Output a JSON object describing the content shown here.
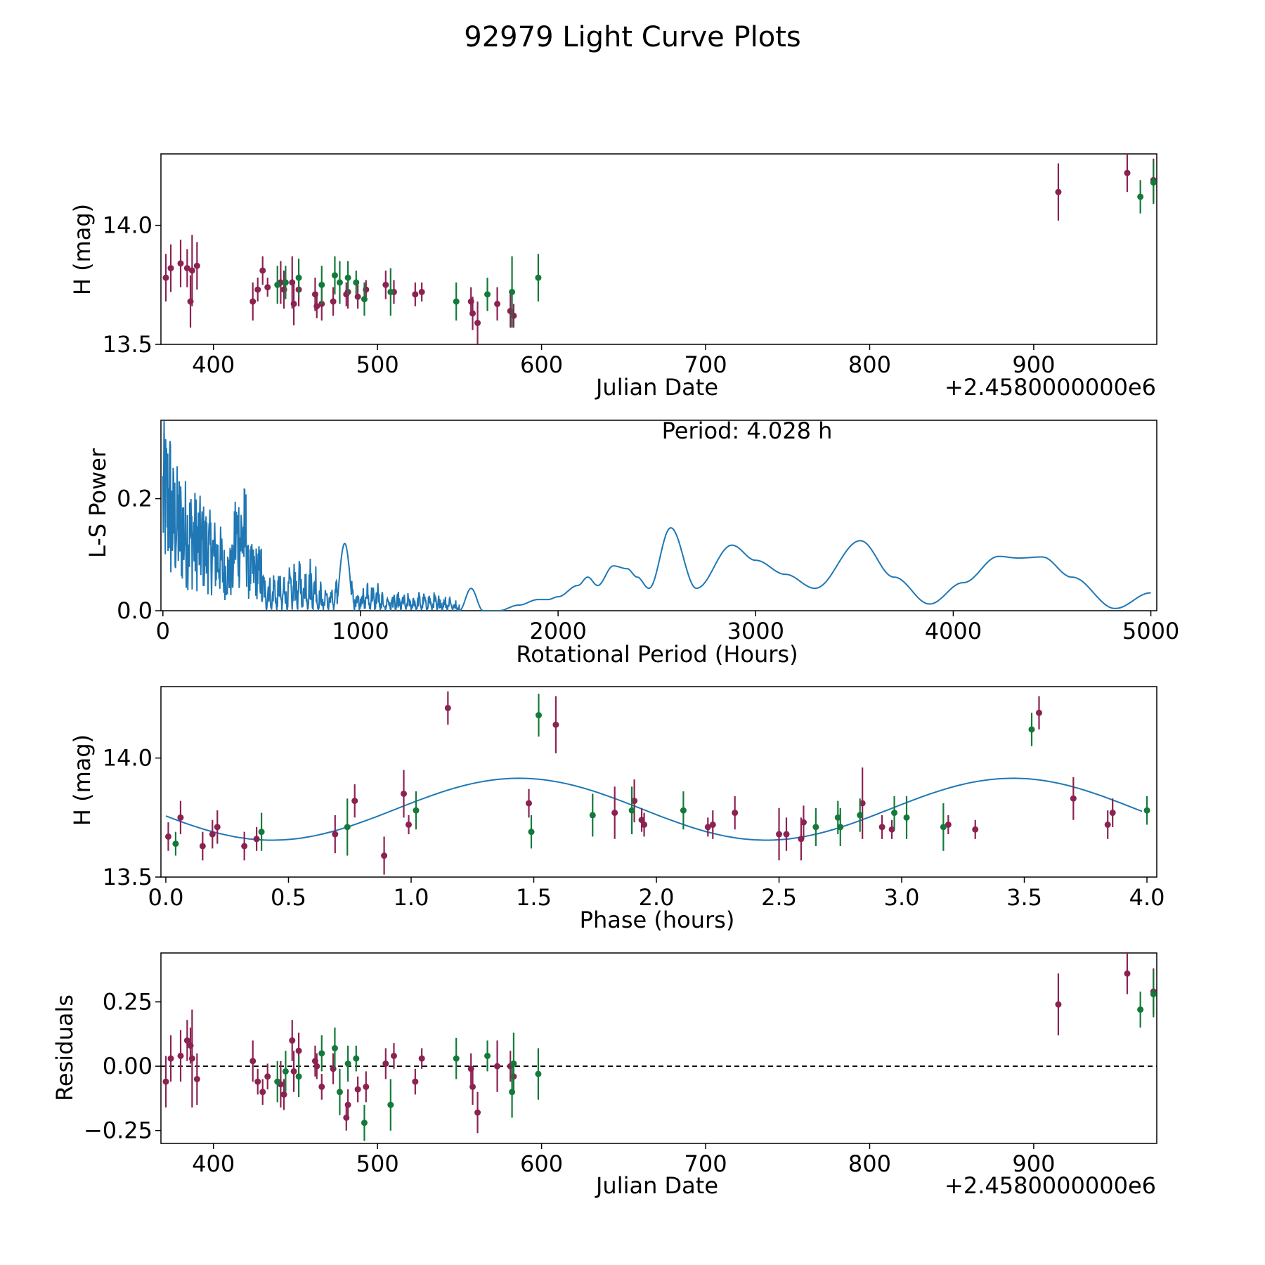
{
  "figure": {
    "title": "92979 Light Curve Plots",
    "background": "#ffffff"
  },
  "colors": {
    "magenta": "#8b2252",
    "green": "#137a3a",
    "curve": "#1f77b4",
    "axis": "#000000"
  },
  "chart_data": [
    {
      "id": "lightcurve",
      "type": "scatter",
      "title": "",
      "xlabel": "Julian Date",
      "ylabel": "H (mag)",
      "offset_label": "+2.4580000000e6",
      "xlim": [
        368,
        975
      ],
      "ylim": [
        13.5,
        14.3
      ],
      "xticks": [
        400,
        500,
        600,
        700,
        800,
        900
      ],
      "yticks": [
        13.5,
        14.0
      ],
      "ytick_labels": [
        "13.5",
        "14.0"
      ],
      "series": [
        {
          "name": "filter-1",
          "color": "magenta",
          "points": [
            [
              371,
              13.78,
              0.1
            ],
            [
              374,
              13.82,
              0.1
            ],
            [
              380,
              13.84,
              0.1
            ],
            [
              384,
              13.82,
              0.08
            ],
            [
              386,
              13.68,
              0.11
            ],
            [
              387,
              13.81,
              0.15
            ],
            [
              390,
              13.83,
              0.1
            ],
            [
              424,
              13.68,
              0.08
            ],
            [
              427,
              13.73,
              0.05
            ],
            [
              430,
              13.81,
              0.06
            ],
            [
              433,
              13.74,
              0.04
            ],
            [
              441,
              13.76,
              0.09
            ],
            [
              443,
              13.73,
              0.08
            ],
            [
              448,
              13.76,
              0.11
            ],
            [
              449,
              13.67,
              0.09
            ],
            [
              452,
              13.73,
              0.07
            ],
            [
              462,
              13.71,
              0.07
            ],
            [
              463,
              13.66,
              0.05
            ],
            [
              466,
              13.67,
              0.07
            ],
            [
              473,
              13.68,
              0.06
            ],
            [
              481,
              13.71,
              0.05
            ],
            [
              482,
              13.72,
              0.07
            ],
            [
              488,
              13.7,
              0.05
            ],
            [
              493,
              13.73,
              0.04
            ],
            [
              505,
              13.75,
              0.06
            ],
            [
              510,
              13.72,
              0.05
            ],
            [
              523,
              13.71,
              0.05
            ],
            [
              527,
              13.72,
              0.04
            ],
            [
              557,
              13.68,
              0.06
            ],
            [
              558,
              13.63,
              0.07
            ],
            [
              561,
              13.59,
              0.09
            ],
            [
              573,
              13.67,
              0.07
            ],
            [
              581,
              13.64,
              0.07
            ],
            [
              583,
              13.62,
              0.05
            ],
            [
              915,
              14.14,
              0.12
            ],
            [
              957,
              14.22,
              0.08
            ],
            [
              973,
              14.19,
              0.09
            ]
          ]
        },
        {
          "name": "filter-2",
          "color": "green",
          "points": [
            [
              439,
              13.75,
              0.08
            ],
            [
              444,
              13.76,
              0.07
            ],
            [
              452,
              13.78,
              0.08
            ],
            [
              466,
              13.75,
              0.08
            ],
            [
              474,
              13.79,
              0.08
            ],
            [
              477,
              13.76,
              0.09
            ],
            [
              482,
              13.78,
              0.07
            ],
            [
              487,
              13.76,
              0.05
            ],
            [
              492,
              13.69,
              0.07
            ],
            [
              508,
              13.72,
              0.1
            ],
            [
              548,
              13.68,
              0.08
            ],
            [
              567,
              13.71,
              0.07
            ],
            [
              582,
              13.72,
              0.15
            ],
            [
              598,
              13.78,
              0.1
            ],
            [
              965,
              14.12,
              0.07
            ],
            [
              973,
              14.18,
              0.09
            ]
          ]
        }
      ]
    },
    {
      "id": "periodogram",
      "type": "line",
      "title": "",
      "annotation": "Period: 4.028 h",
      "xlabel": "Rotational Period (Hours)",
      "ylabel": "L-S Power",
      "xlim": [
        -10,
        5030
      ],
      "ylim": [
        0,
        0.34
      ],
      "xticks": [
        0,
        1000,
        2000,
        3000,
        4000,
        5000
      ],
      "yticks": [
        0.0,
        0.2
      ],
      "ytick_labels": [
        "0.0",
        "0.2"
      ],
      "smooth_peaks": [
        [
          1500,
          0.0
        ],
        [
          1560,
          0.04
        ],
        [
          1620,
          0.0
        ],
        [
          1700,
          0.0
        ],
        [
          1800,
          0.01
        ],
        [
          1900,
          0.02
        ],
        [
          1950,
          0.02
        ],
        [
          2000,
          0.025
        ],
        [
          2100,
          0.045
        ],
        [
          2150,
          0.06
        ],
        [
          2200,
          0.045
        ],
        [
          2280,
          0.08
        ],
        [
          2350,
          0.075
        ],
        [
          2400,
          0.06
        ],
        [
          2460,
          0.04
        ],
        [
          2570,
          0.148
        ],
        [
          2700,
          0.04
        ],
        [
          2880,
          0.117
        ],
        [
          3000,
          0.09
        ],
        [
          3150,
          0.065
        ],
        [
          3300,
          0.04
        ],
        [
          3530,
          0.125
        ],
        [
          3700,
          0.06
        ],
        [
          3880,
          0.012
        ],
        [
          4050,
          0.05
        ],
        [
          4230,
          0.097
        ],
        [
          4330,
          0.094
        ],
        [
          4450,
          0.096
        ],
        [
          4600,
          0.06
        ],
        [
          4820,
          0.004
        ],
        [
          5000,
          0.032
        ]
      ]
    },
    {
      "id": "phased",
      "type": "scatter",
      "title": "",
      "xlabel": "Phase (hours)",
      "ylabel": "H (mag)",
      "xlim": [
        -0.02,
        4.04
      ],
      "ylim": [
        13.5,
        14.3
      ],
      "xticks": [
        0.0,
        0.5,
        1.0,
        1.5,
        2.0,
        2.5,
        3.0,
        3.5,
        4.0
      ],
      "xtick_labels": [
        "0.0",
        "0.5",
        "1.0",
        "1.5",
        "2.0",
        "2.5",
        "3.0",
        "3.5",
        "4.0"
      ],
      "yticks": [
        13.5,
        14.0
      ],
      "ytick_labels": [
        "13.5",
        "14.0"
      ],
      "model": {
        "mean": 13.785,
        "amplitude": 0.13,
        "period": 2.014,
        "peak_phase": 1.44
      },
      "series": [
        {
          "name": "filter-1",
          "color": "magenta",
          "points": [
            [
              0.01,
              13.67,
              0.06
            ],
            [
              0.06,
              13.75,
              0.07
            ],
            [
              0.15,
              13.63,
              0.06
            ],
            [
              0.19,
              13.68,
              0.06
            ],
            [
              0.21,
              13.71,
              0.07
            ],
            [
              0.32,
              13.63,
              0.06
            ],
            [
              0.37,
              13.66,
              0.05
            ],
            [
              0.69,
              13.68,
              0.08
            ],
            [
              0.77,
              13.82,
              0.07
            ],
            [
              0.89,
              13.59,
              0.08
            ],
            [
              0.97,
              13.85,
              0.1
            ],
            [
              0.99,
              13.72,
              0.04
            ],
            [
              1.15,
              14.21,
              0.07
            ],
            [
              1.48,
              13.81,
              0.06
            ],
            [
              1.59,
              14.14,
              0.12
            ],
            [
              1.83,
              13.77,
              0.11
            ],
            [
              1.91,
              13.82,
              0.09
            ],
            [
              1.94,
              13.74,
              0.05
            ],
            [
              1.95,
              13.72,
              0.05
            ],
            [
              2.21,
              13.71,
              0.04
            ],
            [
              2.23,
              13.72,
              0.06
            ],
            [
              2.32,
              13.77,
              0.07
            ],
            [
              2.5,
              13.68,
              0.11
            ],
            [
              2.53,
              13.68,
              0.07
            ],
            [
              2.59,
              13.66,
              0.09
            ],
            [
              2.6,
              13.73,
              0.07
            ],
            [
              2.84,
              13.81,
              0.15
            ],
            [
              2.92,
              13.71,
              0.05
            ],
            [
              2.96,
              13.7,
              0.04
            ],
            [
              3.19,
              13.72,
              0.04
            ],
            [
              3.3,
              13.7,
              0.04
            ],
            [
              3.56,
              14.19,
              0.07
            ],
            [
              3.7,
              13.83,
              0.09
            ],
            [
              3.84,
              13.72,
              0.06
            ],
            [
              3.86,
              13.77,
              0.06
            ]
          ]
        },
        {
          "name": "filter-2",
          "color": "green",
          "points": [
            [
              0.04,
              13.64,
              0.05
            ],
            [
              0.39,
              13.69,
              0.08
            ],
            [
              0.74,
              13.71,
              0.12
            ],
            [
              1.02,
              13.78,
              0.08
            ],
            [
              1.49,
              13.69,
              0.07
            ],
            [
              1.52,
              14.18,
              0.09
            ],
            [
              1.74,
              13.76,
              0.09
            ],
            [
              1.9,
              13.78,
              0.1
            ],
            [
              2.11,
              13.78,
              0.08
            ],
            [
              2.65,
              13.71,
              0.08
            ],
            [
              2.74,
              13.75,
              0.07
            ],
            [
              2.75,
              13.71,
              0.08
            ],
            [
              2.83,
              13.76,
              0.07
            ],
            [
              2.97,
              13.77,
              0.07
            ],
            [
              3.02,
              13.75,
              0.09
            ],
            [
              3.17,
              13.71,
              0.1
            ],
            [
              3.53,
              14.12,
              0.07
            ],
            [
              4.0,
              13.78,
              0.06
            ]
          ]
        }
      ]
    },
    {
      "id": "residuals",
      "type": "scatter",
      "title": "",
      "xlabel": "Julian Date",
      "ylabel": "Residuals",
      "offset_label": "+2.4580000000e6",
      "xlim": [
        368,
        975
      ],
      "ylim": [
        -0.3,
        0.44
      ],
      "xticks": [
        400,
        500,
        600,
        700,
        800,
        900
      ],
      "yticks": [
        -0.25,
        0.0,
        0.25
      ],
      "ytick_labels": [
        "−0.25",
        "0.00",
        "0.25"
      ],
      "reference_line": 0,
      "series": [
        {
          "name": "filter-1",
          "color": "magenta",
          "points": [
            [
              371,
              -0.06,
              0.1
            ],
            [
              374,
              0.03,
              0.09
            ],
            [
              380,
              0.04,
              0.1
            ],
            [
              384,
              0.1,
              0.08
            ],
            [
              386,
              0.08,
              0.07
            ],
            [
              387,
              0.03,
              0.19
            ],
            [
              390,
              -0.05,
              0.1
            ],
            [
              424,
              0.02,
              0.08
            ],
            [
              427,
              -0.06,
              0.05
            ],
            [
              430,
              -0.1,
              0.05
            ],
            [
              433,
              -0.04,
              0.05
            ],
            [
              441,
              -0.07,
              0.09
            ],
            [
              443,
              -0.11,
              0.06
            ],
            [
              448,
              0.1,
              0.08
            ],
            [
              449,
              -0.02,
              0.08
            ],
            [
              452,
              0.06,
              0.07
            ],
            [
              462,
              0.02,
              0.06
            ],
            [
              463,
              0.0,
              0.05
            ],
            [
              466,
              -0.08,
              0.05
            ],
            [
              473,
              -0.01,
              0.06
            ],
            [
              481,
              -0.2,
              0.05
            ],
            [
              482,
              -0.15,
              0.06
            ],
            [
              488,
              -0.09,
              0.05
            ],
            [
              493,
              -0.08,
              0.06
            ],
            [
              505,
              0.01,
              0.06
            ],
            [
              510,
              0.04,
              0.05
            ],
            [
              523,
              -0.06,
              0.05
            ],
            [
              527,
              0.03,
              0.04
            ],
            [
              557,
              -0.01,
              0.06
            ],
            [
              558,
              -0.08,
              0.07
            ],
            [
              561,
              -0.18,
              0.08
            ],
            [
              573,
              0.0,
              0.1
            ],
            [
              581,
              0.0,
              0.06
            ],
            [
              583,
              -0.04,
              0.05
            ],
            [
              915,
              0.24,
              0.12
            ],
            [
              957,
              0.36,
              0.08
            ],
            [
              973,
              0.29,
              0.09
            ]
          ]
        },
        {
          "name": "filter-2",
          "color": "green",
          "points": [
            [
              439,
              -0.06,
              0.08
            ],
            [
              444,
              -0.02,
              0.08
            ],
            [
              452,
              -0.04,
              0.08
            ],
            [
              466,
              0.05,
              0.07
            ],
            [
              474,
              0.07,
              0.08
            ],
            [
              477,
              -0.1,
              0.09
            ],
            [
              482,
              0.01,
              0.07
            ],
            [
              487,
              0.03,
              0.05
            ],
            [
              492,
              -0.22,
              0.07
            ],
            [
              508,
              -0.15,
              0.1
            ],
            [
              548,
              0.03,
              0.08
            ],
            [
              567,
              0.04,
              0.06
            ],
            [
              582,
              -0.1,
              0.1
            ],
            [
              583,
              0.01,
              0.12
            ],
            [
              598,
              -0.03,
              0.1
            ],
            [
              965,
              0.22,
              0.07
            ],
            [
              973,
              0.28,
              0.09
            ]
          ]
        }
      ]
    }
  ]
}
